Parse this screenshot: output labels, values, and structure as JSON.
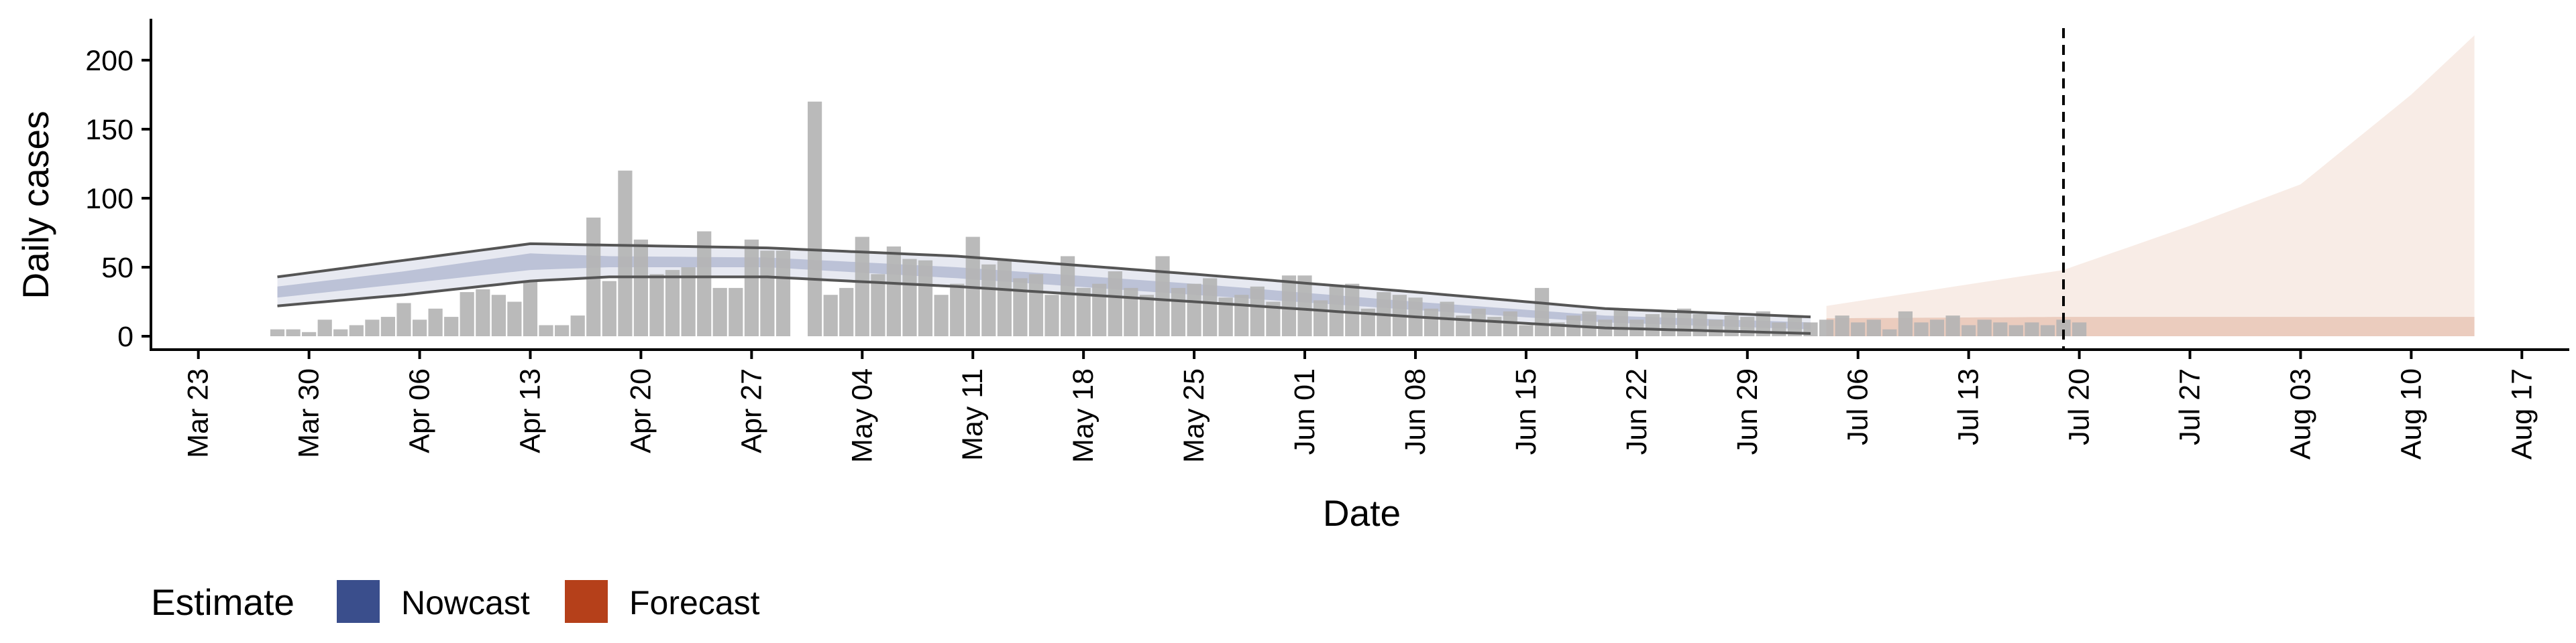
{
  "chart_data": {
    "type": "bar",
    "title": "",
    "xlabel": "Date",
    "ylabel": "Daily cases",
    "ylim": [
      0,
      230
    ],
    "xlim": [
      "2020-03-20",
      "2020-08-20"
    ],
    "y_ticks": [
      0,
      50,
      100,
      150,
      200
    ],
    "x_ticks": [
      {
        "date": "2020-03-23",
        "label": "Mar 23"
      },
      {
        "date": "2020-03-30",
        "label": "Mar 30"
      },
      {
        "date": "2020-04-06",
        "label": "Apr 06"
      },
      {
        "date": "2020-04-13",
        "label": "Apr 13"
      },
      {
        "date": "2020-04-20",
        "label": "Apr 20"
      },
      {
        "date": "2020-04-27",
        "label": "Apr 27"
      },
      {
        "date": "2020-05-04",
        "label": "May 04"
      },
      {
        "date": "2020-05-11",
        "label": "May 11"
      },
      {
        "date": "2020-05-18",
        "label": "May 18"
      },
      {
        "date": "2020-05-25",
        "label": "May 25"
      },
      {
        "date": "2020-06-01",
        "label": "Jun 01"
      },
      {
        "date": "2020-06-08",
        "label": "Jun 08"
      },
      {
        "date": "2020-06-15",
        "label": "Jun 15"
      },
      {
        "date": "2020-06-22",
        "label": "Jun 22"
      },
      {
        "date": "2020-06-29",
        "label": "Jun 29"
      },
      {
        "date": "2020-07-06",
        "label": "Jul 06"
      },
      {
        "date": "2020-07-13",
        "label": "Jul 13"
      },
      {
        "date": "2020-07-20",
        "label": "Jul 20"
      },
      {
        "date": "2020-07-27",
        "label": "Jul 27"
      },
      {
        "date": "2020-08-03",
        "label": "Aug 03"
      },
      {
        "date": "2020-08-10",
        "label": "Aug 10"
      },
      {
        "date": "2020-08-17",
        "label": "Aug 17"
      }
    ],
    "grid": false,
    "legend_position": "bottom-left",
    "legend": {
      "title": "Estimate",
      "items": [
        {
          "label": "Nowcast",
          "color": "#3a4e8c"
        },
        {
          "label": "Forecast",
          "color": "#b5401a"
        }
      ]
    },
    "vline_date": "2020-07-19",
    "bar_color": "#b4b4b4",
    "band_line_color": "#555555",
    "cases_start": "2020-03-28",
    "cases": [
      5,
      5,
      3,
      12,
      5,
      8,
      12,
      14,
      24,
      12,
      20,
      14,
      32,
      34,
      30,
      25,
      40,
      8,
      8,
      15,
      86,
      40,
      120,
      70,
      45,
      48,
      50,
      76,
      35,
      35,
      70,
      62,
      62,
      0,
      170,
      30,
      35,
      72,
      45,
      65,
      56,
      55,
      30,
      38,
      72,
      52,
      56,
      42,
      45,
      30,
      58,
      35,
      38,
      47,
      35,
      30,
      58,
      35,
      38,
      42,
      28,
      30,
      36,
      25,
      44,
      44,
      26,
      36,
      38,
      20,
      32,
      30,
      28,
      20,
      25,
      15,
      20,
      14,
      18,
      8,
      35,
      10,
      15,
      18,
      12,
      20,
      12,
      16,
      18,
      20,
      16,
      12,
      15,
      14,
      18,
      10,
      15,
      10,
      12,
      15,
      10,
      12,
      5,
      18,
      10,
      12,
      15,
      8,
      12,
      10,
      8,
      10,
      8,
      12,
      10
    ],
    "series": [
      {
        "name": "Nowcast",
        "start": "2020-03-28",
        "end": "2020-07-03",
        "knots": [
          {
            "date": "2020-03-28",
            "outer_lo": 22,
            "outer_hi": 43,
            "inner_lo": 28,
            "inner_hi": 36
          },
          {
            "date": "2020-04-05",
            "outer_lo": 30,
            "outer_hi": 55,
            "inner_lo": 38,
            "inner_hi": 47
          },
          {
            "date": "2020-04-13",
            "outer_lo": 40,
            "outer_hi": 67,
            "inner_lo": 48,
            "inner_hi": 60
          },
          {
            "date": "2020-04-18",
            "outer_lo": 43,
            "outer_hi": 66,
            "inner_lo": 50,
            "inner_hi": 58
          },
          {
            "date": "2020-04-28",
            "outer_lo": 43,
            "outer_hi": 64,
            "inner_lo": 50,
            "inner_hi": 57
          },
          {
            "date": "2020-05-10",
            "outer_lo": 36,
            "outer_hi": 58,
            "inner_lo": 42,
            "inner_hi": 50
          },
          {
            "date": "2020-05-25",
            "outer_lo": 25,
            "outer_hi": 45,
            "inner_lo": 30,
            "inner_hi": 38
          },
          {
            "date": "2020-06-08",
            "outer_lo": 14,
            "outer_hi": 32,
            "inner_lo": 19,
            "inner_hi": 25
          },
          {
            "date": "2020-06-20",
            "outer_lo": 6,
            "outer_hi": 20,
            "inner_lo": 10,
            "inner_hi": 15
          },
          {
            "date": "2020-07-03",
            "outer_lo": 2,
            "outer_hi": 14,
            "inner_lo": 5,
            "inner_hi": 10
          }
        ]
      },
      {
        "name": "Forecast",
        "start": "2020-07-04",
        "end": "2020-08-14",
        "knots": [
          {
            "date": "2020-07-04",
            "outer_lo": 0,
            "outer_hi": 22,
            "inner_lo": 0,
            "inner_hi": 13
          },
          {
            "date": "2020-07-19",
            "outer_lo": 0,
            "outer_hi": 48,
            "inner_lo": 0,
            "inner_hi": 14
          },
          {
            "date": "2020-07-27",
            "outer_lo": 0,
            "outer_hi": 80,
            "inner_lo": 0,
            "inner_hi": 14
          },
          {
            "date": "2020-08-03",
            "outer_lo": 0,
            "outer_hi": 110,
            "inner_lo": 0,
            "inner_hi": 14
          },
          {
            "date": "2020-08-10",
            "outer_lo": 0,
            "outer_hi": 175,
            "inner_lo": 0,
            "inner_hi": 14
          },
          {
            "date": "2020-08-14",
            "outer_lo": 0,
            "outer_hi": 218,
            "inner_lo": 0,
            "inner_hi": 14
          }
        ]
      }
    ]
  }
}
